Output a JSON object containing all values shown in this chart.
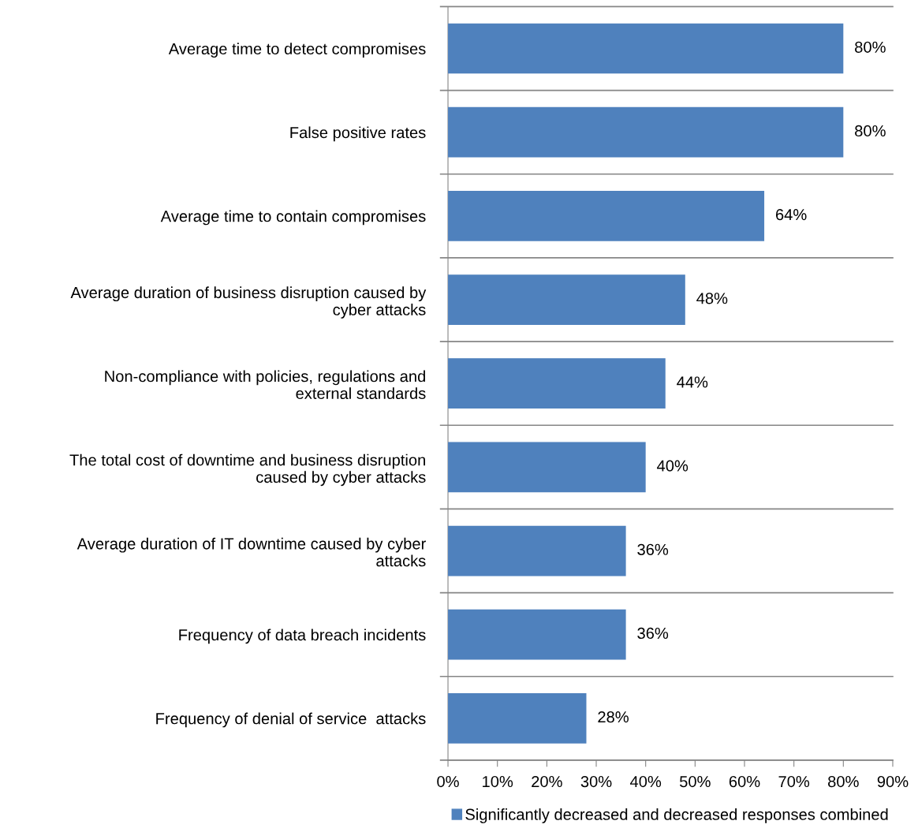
{
  "chart_data": {
    "type": "bar",
    "orientation": "horizontal",
    "categories": [
      "Average time to detect compromises",
      "False positive rates",
      "Average time to contain compromises",
      "Average duration of business disruption caused by\ncyber attacks",
      "Non-compliance with policies, regulations and\nexternal standards",
      "The total cost of downtime and business disruption\ncaused by cyber attacks",
      "Average duration of IT downtime caused by cyber\nattacks",
      "Frequency of data breach incidents",
      "Frequency of denial of service  attacks"
    ],
    "series": [
      {
        "name": "Significantly decreased and decreased responses combined",
        "color": "#4f81bd",
        "values": [
          80,
          80,
          64,
          48,
          44,
          40,
          36,
          36,
          28
        ],
        "value_labels": [
          "80%",
          "80%",
          "64%",
          "48%",
          "44%",
          "40%",
          "36%",
          "36%",
          "28%"
        ]
      }
    ],
    "xlim": [
      0,
      90
    ],
    "xticks": [
      {
        "value": 0,
        "label": "0%"
      },
      {
        "value": 10,
        "label": "10%"
      },
      {
        "value": 20,
        "label": "20%"
      },
      {
        "value": 30,
        "label": "30%"
      },
      {
        "value": 40,
        "label": "40%"
      },
      {
        "value": 50,
        "label": "50%"
      },
      {
        "value": 60,
        "label": "60%"
      },
      {
        "value": 70,
        "label": "70%"
      },
      {
        "value": 80,
        "label": "80%"
      },
      {
        "value": 90,
        "label": "90%"
      }
    ],
    "grid": "y",
    "legend": "bottom"
  }
}
